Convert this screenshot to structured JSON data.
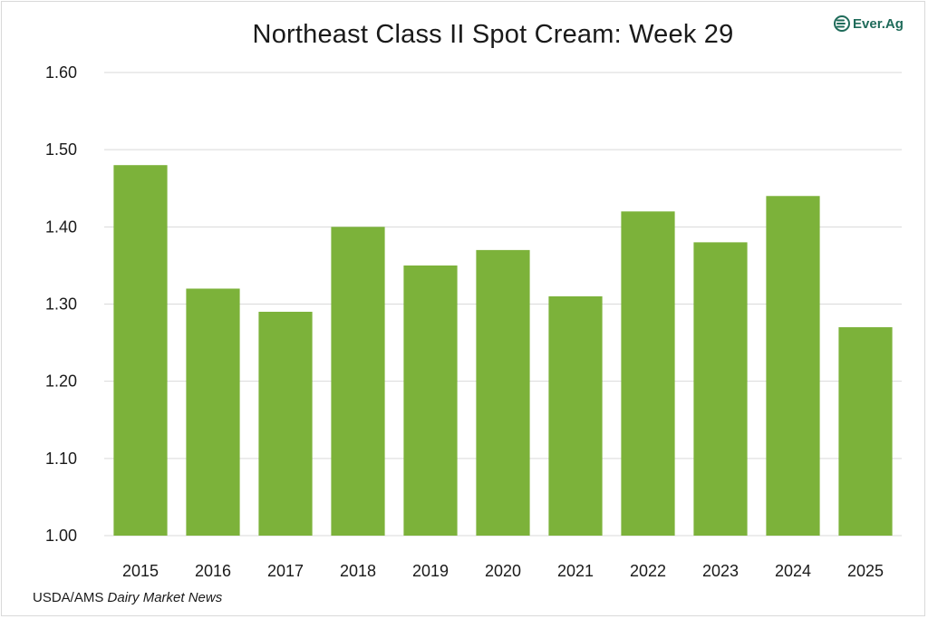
{
  "logo": {
    "brand": "Ever.Ag",
    "icon": "everag-logo-icon",
    "color": "#1f6b5a"
  },
  "source": {
    "org": "USDA/AMS",
    "publication": "Dairy Market News"
  },
  "chart_data": {
    "type": "bar",
    "title": "Northeast Class II Spot Cream: Week 29",
    "xlabel": "",
    "ylabel": "",
    "categories": [
      "2015",
      "2016",
      "2017",
      "2018",
      "2019",
      "2020",
      "2021",
      "2022",
      "2023",
      "2024",
      "2025"
    ],
    "values": [
      1.48,
      1.32,
      1.29,
      1.4,
      1.35,
      1.37,
      1.31,
      1.42,
      1.38,
      1.44,
      1.27
    ],
    "ylim": [
      1.0,
      1.6
    ],
    "yticks": [
      "1.00",
      "1.10",
      "1.20",
      "1.30",
      "1.40",
      "1.50",
      "1.60"
    ],
    "grid": true,
    "legend": "none",
    "bar_color": "#7cb23a",
    "grid_color": "#d9d9d9"
  }
}
